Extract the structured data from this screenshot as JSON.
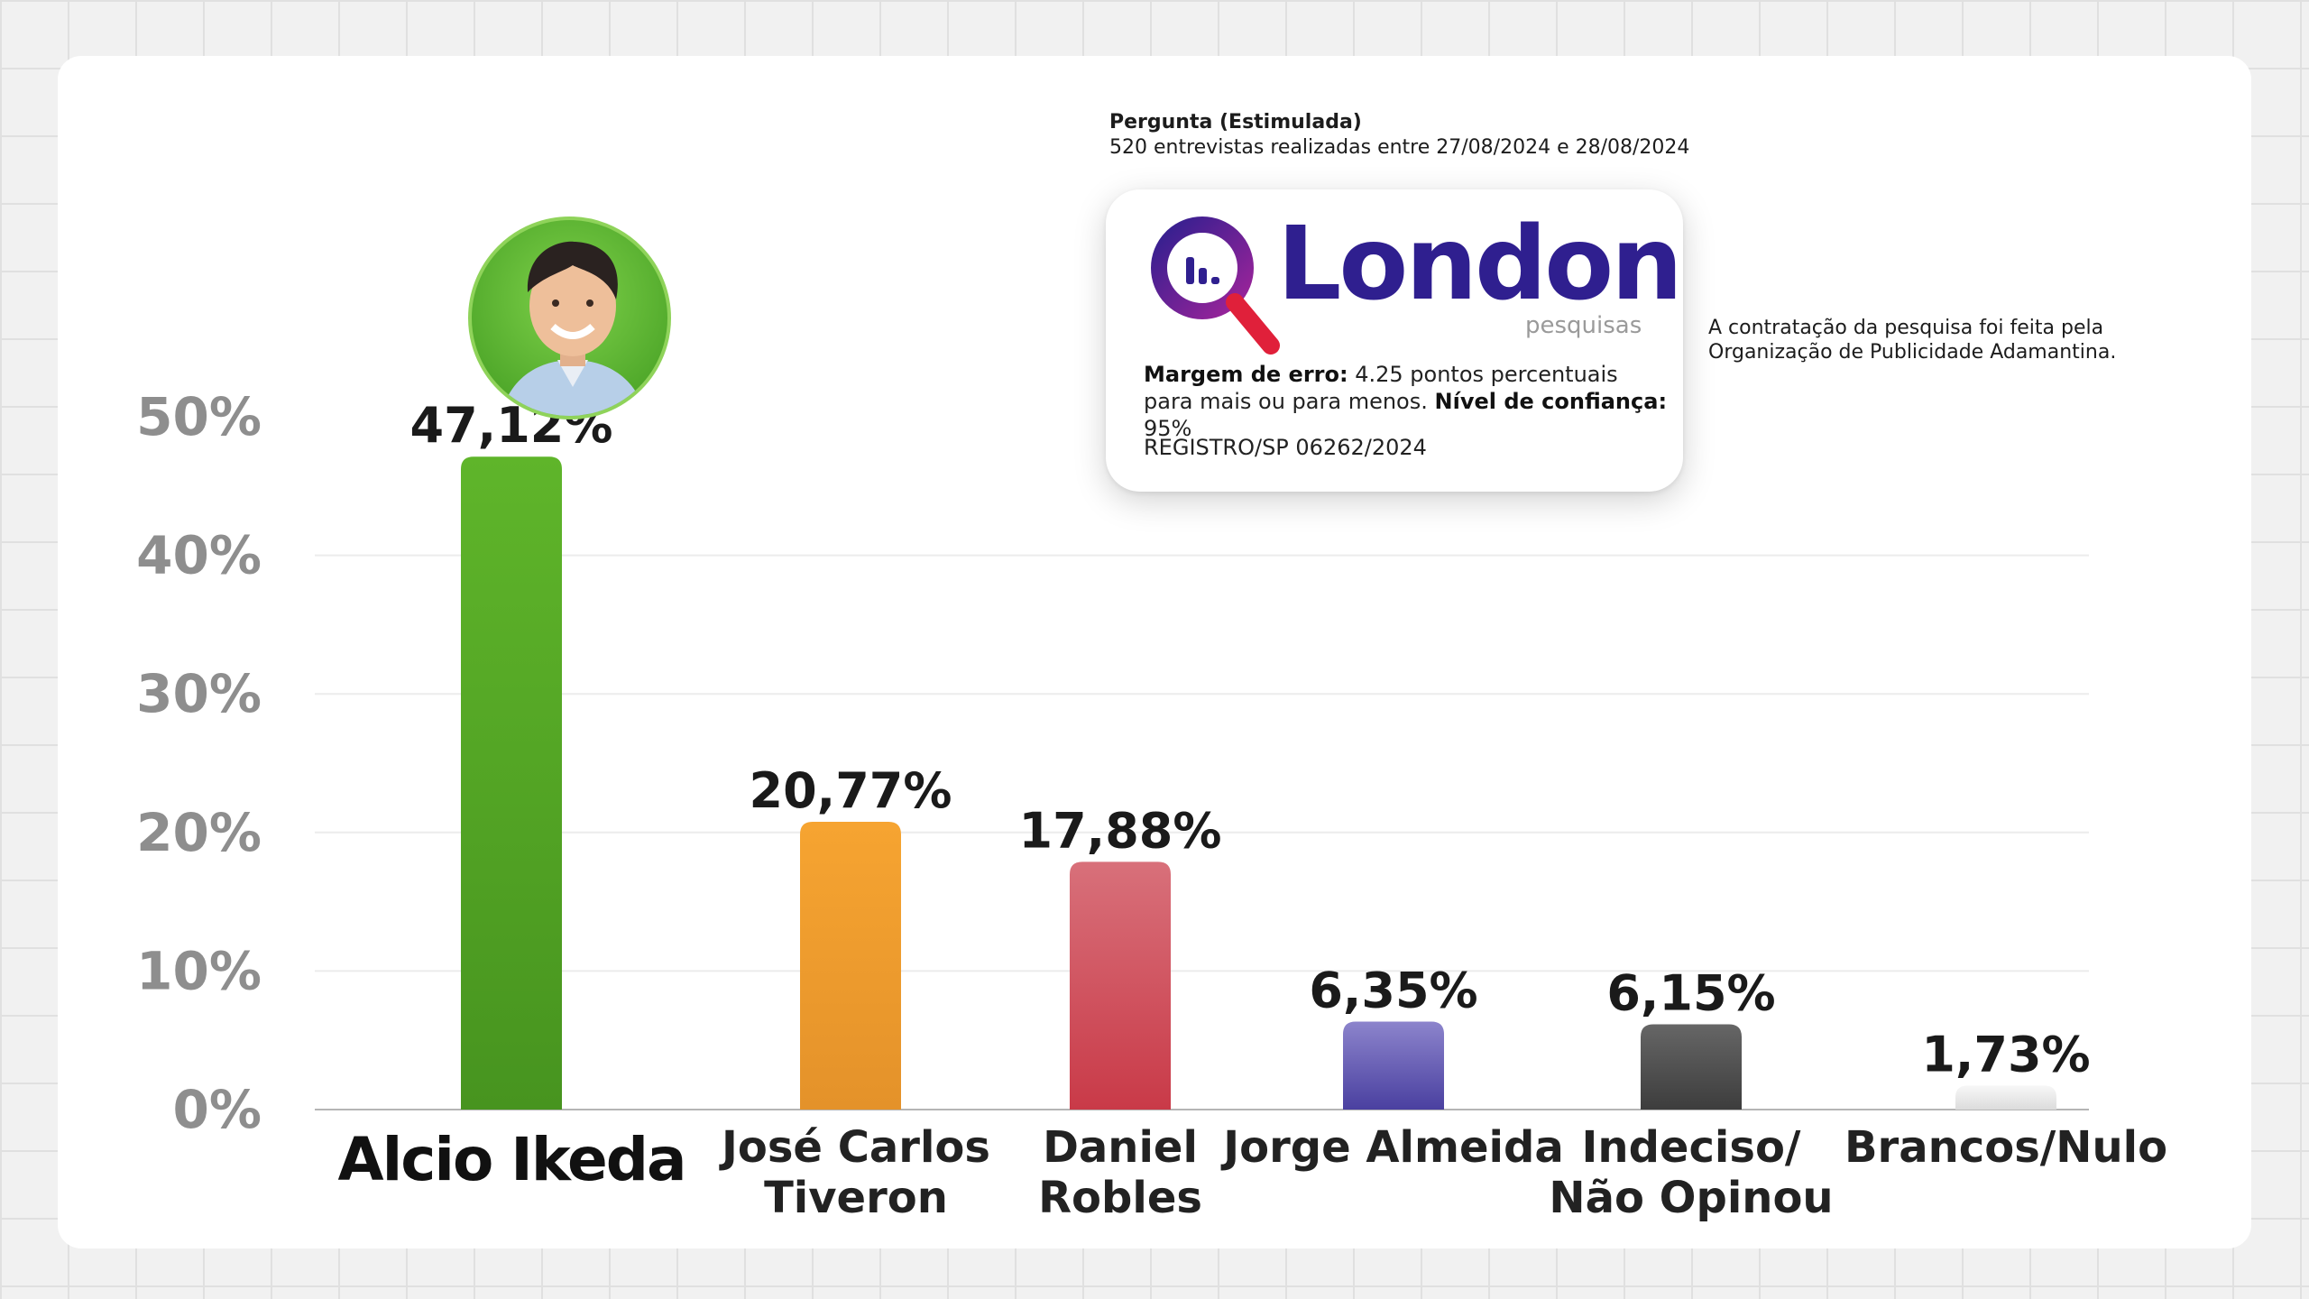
{
  "header": {
    "question": "Pergunta (Estimulada)",
    "interviews": "520 entrevistas realizadas entre 27/08/2024 e 28/08/2024"
  },
  "logo": {
    "name": "London",
    "sub": "pesquisas",
    "color": "#2f1f8f",
    "accent": "#e0203a"
  },
  "methodology": {
    "margin_label": "Margem de erro:",
    "margin_value": "4.25 pontos percentuais",
    "margin_value2": "para mais ou para menos.",
    "confidence_label": "Nível de confiança:",
    "confidence_value": "95%",
    "registration": "REGISTRO/SP 06262/2024"
  },
  "contract": {
    "line1": "A contratação da pesquisa foi feita pela",
    "line2": "Organização de Publicidade Adamantina."
  },
  "photo": {
    "icon": "candidate-photo"
  },
  "chart_data": {
    "type": "bar",
    "categories": [
      "Alcio Ikeda",
      "José Carlos Tiveron",
      "Daniel Robles",
      "Jorge Almeida",
      "Indeciso/ Não Opinou",
      "Brancos/Nulo"
    ],
    "category_lines": [
      [
        "Alcio Ikeda"
      ],
      [
        "José Carlos",
        "Tiveron"
      ],
      [
        "Daniel",
        "Robles"
      ],
      [
        "Jorge Almeida"
      ],
      [
        "Indeciso/",
        "Não Opinou"
      ],
      [
        "Brancos/Nulo"
      ]
    ],
    "values": [
      47.12,
      20.77,
      17.88,
      6.35,
      6.15,
      1.73
    ],
    "value_labels": [
      "47,12%",
      "20,77%",
      "17,88%",
      "6,35%",
      "6,15%",
      "1,73%"
    ],
    "colors": [
      [
        "#5fb52a",
        "#47941f"
      ],
      [
        "#f6a431",
        "#e4922a"
      ],
      [
        "#d8707a",
        "#c93a48"
      ],
      [
        "#8c84cc",
        "#4a40a0"
      ],
      [
        "#666666",
        "#3d3d3d"
      ],
      [
        "#f7f7f7",
        "#dcdcdc"
      ]
    ],
    "yticks": [
      "0%",
      "10%",
      "20%",
      "30%",
      "40%",
      "50%"
    ],
    "ylim": [
      0,
      50
    ],
    "grid": true
  }
}
